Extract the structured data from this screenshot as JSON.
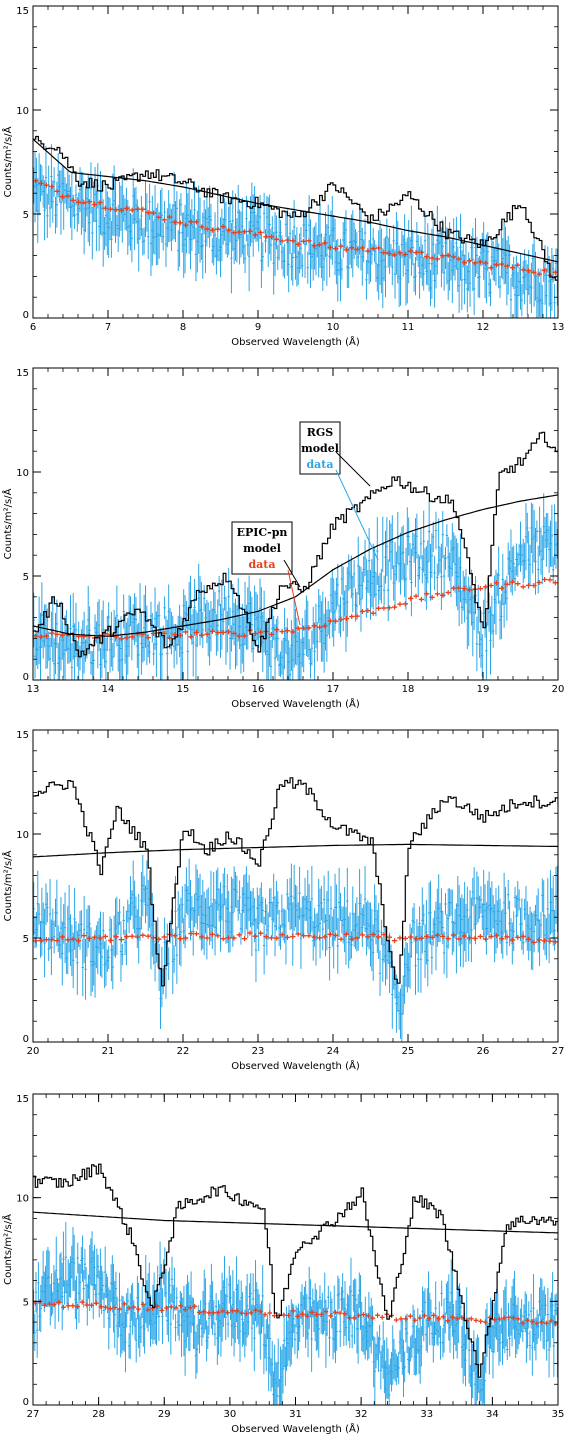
{
  "colors": {
    "rgs_model": "#000000",
    "epic_model": "#000000",
    "rgs_data": "#2aa6e8",
    "epic_data": "#e8401c"
  },
  "chart_data": [
    {
      "type": "line",
      "xlabel": "Observed Wavelength (Å)",
      "ylabel": "Counts/m²/s/Å",
      "xlim": [
        6,
        13
      ],
      "ylim": [
        0,
        15
      ],
      "xticks": [
        6,
        7,
        8,
        9,
        10,
        11,
        12,
        13
      ],
      "yticks": [
        0,
        5,
        10,
        15
      ],
      "series": [
        {
          "key": "rgs_model",
          "x": [
            6.0,
            6.3,
            6.6,
            7.0,
            7.5,
            8.0,
            8.5,
            9.0,
            9.5,
            10.0,
            10.5,
            11.0,
            11.5,
            12.0,
            12.5,
            13.0
          ],
          "y": [
            8.5,
            8.3,
            6.6,
            6.3,
            7.0,
            6.5,
            5.8,
            5.5,
            4.8,
            6.4,
            4.7,
            5.9,
            4.1,
            3.5,
            5.6,
            1.3
          ]
        },
        {
          "key": "epic_model",
          "x": [
            6.0,
            6.5,
            7.0,
            7.5,
            8.0,
            8.5,
            9.0,
            9.5,
            10.0,
            10.5,
            11.0,
            11.5,
            12.0,
            12.5,
            13.0
          ],
          "y": [
            8.6,
            7.0,
            6.8,
            6.6,
            6.3,
            5.9,
            5.5,
            5.2,
            4.9,
            4.6,
            4.2,
            3.9,
            3.5,
            3.1,
            2.7
          ]
        },
        {
          "key": "rgs_data",
          "x": [
            6.0,
            6.5,
            7.0,
            7.5,
            8.0,
            8.5,
            9.0,
            9.5,
            10.0,
            10.5,
            11.0,
            11.5,
            12.0,
            12.5,
            13.0
          ],
          "y": [
            6.0,
            5.6,
            5.0,
            4.6,
            4.3,
            4.0,
            3.9,
            3.6,
            3.2,
            3.0,
            2.8,
            2.5,
            2.3,
            2.0,
            1.8
          ]
        },
        {
          "key": "epic_data",
          "x": [
            6.0,
            6.5,
            7.0,
            7.5,
            8.0,
            8.5,
            9.0,
            9.5,
            10.0,
            10.5,
            11.0,
            11.5,
            12.0,
            12.5,
            13.0
          ],
          "y": [
            6.6,
            5.8,
            5.4,
            5.1,
            4.6,
            4.3,
            4.0,
            3.7,
            3.4,
            3.3,
            3.1,
            2.9,
            2.6,
            2.4,
            2.1
          ]
        }
      ]
    },
    {
      "type": "line",
      "xlabel": "Observed Wavelength (Å)",
      "ylabel": "Counts/m²/s/Å",
      "xlim": [
        13,
        20
      ],
      "ylim": [
        0,
        15
      ],
      "xticks": [
        13,
        14,
        15,
        16,
        17,
        18,
        19,
        20
      ],
      "yticks": [
        0,
        5,
        10,
        15
      ],
      "series": [
        {
          "key": "rgs_model",
          "x": [
            13.0,
            13.3,
            13.6,
            14.0,
            14.4,
            14.8,
            15.2,
            15.6,
            16.0,
            16.3,
            16.6,
            17.0,
            17.4,
            17.8,
            18.2,
            18.6,
            19.0,
            19.2,
            19.5,
            19.8,
            20.0
          ],
          "y": [
            2.2,
            4.0,
            1.2,
            2.3,
            3.4,
            1.5,
            4.3,
            5.0,
            1.5,
            4.6,
            4.3,
            7.5,
            8.5,
            9.7,
            9.0,
            8.5,
            2.3,
            9.8,
            10.5,
            11.8,
            10.8
          ]
        },
        {
          "key": "epic_model",
          "x": [
            13.0,
            13.5,
            14.0,
            14.5,
            15.0,
            15.5,
            16.0,
            16.5,
            17.0,
            17.5,
            18.0,
            18.5,
            19.0,
            19.5,
            20.0
          ],
          "y": [
            2.6,
            2.2,
            2.1,
            2.3,
            2.6,
            2.9,
            3.3,
            4.0,
            5.3,
            6.3,
            7.1,
            7.7,
            8.2,
            8.6,
            8.9
          ]
        },
        {
          "key": "rgs_data",
          "x": [
            13.0,
            13.5,
            14.0,
            14.5,
            15.0,
            15.5,
            16.0,
            16.3,
            16.6,
            17.0,
            17.5,
            18.0,
            18.5,
            19.0,
            19.5,
            20.0
          ],
          "y": [
            2.2,
            1.6,
            2.0,
            2.4,
            2.4,
            3.2,
            2.6,
            1.2,
            1.4,
            3.6,
            5.2,
            5.8,
            6.2,
            2.2,
            6.2,
            6.4
          ]
        },
        {
          "key": "epic_data",
          "x": [
            13.0,
            13.5,
            14.0,
            14.5,
            15.0,
            15.5,
            16.0,
            16.5,
            17.0,
            17.5,
            18.0,
            18.5,
            19.0,
            19.5,
            20.0
          ],
          "y": [
            2.2,
            2.1,
            2.1,
            2.1,
            2.2,
            2.2,
            2.3,
            2.4,
            2.8,
            3.3,
            3.8,
            4.2,
            4.5,
            4.6,
            4.8
          ]
        }
      ],
      "annotations": [
        {
          "lines": [
            "RGS",
            "model",
            "data"
          ],
          "colors": [
            "rgs_model",
            "rgs_model",
            "rgs_data"
          ]
        },
        {
          "lines": [
            "EPIC-pn",
            "model",
            "data"
          ],
          "colors": [
            "epic_model",
            "epic_model",
            "epic_data"
          ]
        }
      ]
    },
    {
      "type": "line",
      "xlabel": "Observed Wavelength (Å)",
      "ylabel": "Counts/m²/s/Å",
      "xlim": [
        20,
        27
      ],
      "ylim": [
        0,
        15
      ],
      "xticks": [
        20,
        21,
        22,
        23,
        24,
        25,
        26,
        27
      ],
      "yticks": [
        0,
        5,
        10,
        15
      ],
      "series": [
        {
          "key": "rgs_model",
          "x": [
            20.0,
            20.5,
            20.9,
            21.1,
            21.5,
            21.7,
            22.0,
            22.3,
            22.6,
            23.0,
            23.3,
            23.6,
            24.0,
            24.5,
            24.85,
            25.0,
            25.5,
            26.0,
            26.5,
            27.0
          ],
          "y": [
            12.0,
            12.5,
            8.2,
            11.2,
            9.3,
            2.6,
            10.4,
            9.2,
            10.0,
            8.6,
            12.5,
            12.3,
            10.4,
            9.6,
            2.2,
            9.5,
            11.8,
            10.8,
            11.6,
            11.5
          ]
        },
        {
          "key": "epic_model",
          "x": [
            20.0,
            21.0,
            22.0,
            23.0,
            24.0,
            25.0,
            26.0,
            27.0
          ],
          "y": [
            8.9,
            9.1,
            9.25,
            9.35,
            9.45,
            9.5,
            9.45,
            9.4
          ]
        },
        {
          "key": "rgs_data",
          "x": [
            20.0,
            20.5,
            21.0,
            21.5,
            21.7,
            22.0,
            22.5,
            23.0,
            23.5,
            24.0,
            24.5,
            24.9,
            25.0,
            25.5,
            26.0,
            26.5,
            27.0
          ],
          "y": [
            6.2,
            4.9,
            4.3,
            6.8,
            3.1,
            6.2,
            6.6,
            5.5,
            6.2,
            5.6,
            5.8,
            1.6,
            4.6,
            5.5,
            6.2,
            5.8,
            6.0
          ]
        },
        {
          "key": "epic_data",
          "x": [
            20.0,
            21.0,
            22.0,
            23.0,
            24.0,
            25.0,
            26.0,
            27.0
          ],
          "y": [
            4.9,
            5.0,
            5.1,
            5.1,
            5.1,
            5.0,
            5.0,
            4.9
          ]
        }
      ]
    },
    {
      "type": "line",
      "xlabel": "Observed Wavelength (Å)",
      "ylabel": "Counts/m²/s/Å",
      "xlim": [
        27,
        35
      ],
      "ylim": [
        0,
        15
      ],
      "xticks": [
        27,
        28,
        29,
        30,
        31,
        32,
        33,
        34,
        35
      ],
      "yticks": [
        0,
        5,
        10,
        15
      ],
      "series": [
        {
          "key": "rgs_model",
          "x": [
            27.0,
            27.5,
            28.0,
            28.5,
            28.8,
            29.2,
            29.8,
            30.5,
            30.7,
            31.0,
            31.5,
            32.0,
            32.4,
            32.8,
            33.2,
            33.8,
            34.2,
            34.6,
            35.0
          ],
          "y": [
            10.8,
            10.7,
            11.5,
            8.0,
            4.5,
            9.5,
            10.4,
            9.5,
            3.9,
            7.6,
            8.7,
            10.2,
            3.9,
            10.0,
            9.2,
            1.4,
            8.7,
            9.0,
            8.8
          ]
        },
        {
          "key": "epic_model",
          "x": [
            27.0,
            28.0,
            29.0,
            30.0,
            31.0,
            32.0,
            33.0,
            34.0,
            35.0
          ],
          "y": [
            9.3,
            9.1,
            8.9,
            8.8,
            8.7,
            8.6,
            8.5,
            8.4,
            8.3
          ]
        },
        {
          "key": "rgs_data",
          "x": [
            27.0,
            27.5,
            28.0,
            28.5,
            29.0,
            29.5,
            30.0,
            30.5,
            30.7,
            31.0,
            31.5,
            32.0,
            32.4,
            33.0,
            33.5,
            33.8,
            34.0,
            34.5,
            35.0
          ],
          "y": [
            4.5,
            6.2,
            5.8,
            3.8,
            5.3,
            3.5,
            4.8,
            4.2,
            1.0,
            3.9,
            4.2,
            4.5,
            1.3,
            4.1,
            4.3,
            1.0,
            3.6,
            3.9,
            3.8
          ]
        },
        {
          "key": "epic_data",
          "x": [
            27.0,
            28.0,
            29.0,
            30.0,
            31.0,
            32.0,
            33.0,
            34.0,
            35.0
          ],
          "y": [
            4.9,
            4.8,
            4.7,
            4.5,
            4.4,
            4.3,
            4.2,
            4.1,
            4.0
          ]
        }
      ]
    }
  ]
}
